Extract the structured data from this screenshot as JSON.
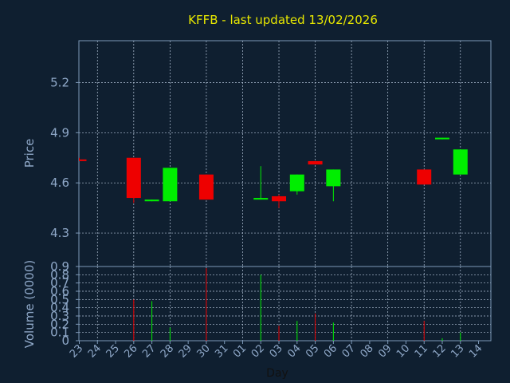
{
  "chart_data": {
    "type": "candlestick",
    "title": "KFFB - last updated 13/02/2026",
    "xlabel": "Day",
    "colors": {
      "background": "#0f1f30",
      "axis": "#7d99b8",
      "grid": "#b4c4d8",
      "title": "#e8e800",
      "up": "#00ee00",
      "down": "#ee0000",
      "tick_label": "#8fa8c8"
    },
    "x_tick_labels": [
      "23",
      "24",
      "25",
      "26",
      "27",
      "28",
      "29",
      "30",
      "31",
      "01",
      "02",
      "03",
      "04",
      "05",
      "06",
      "07",
      "08",
      "09",
      "10",
      "11",
      "12",
      "13",
      "14"
    ],
    "price_panel": {
      "ylabel": "Price",
      "ylim": [
        4.1,
        5.45
      ],
      "yticks": [
        "4.3",
        "4.6",
        "4.9",
        "5.2"
      ],
      "grid": true,
      "candles": [
        {
          "day": "23",
          "open": 4.74,
          "high": 4.75,
          "low": 4.73,
          "close": 4.74,
          "direction": "down"
        },
        {
          "day": "26",
          "open": 4.75,
          "high": 4.75,
          "low": 4.48,
          "close": 4.51,
          "direction": "down"
        },
        {
          "day": "27",
          "open": 4.49,
          "high": 4.5,
          "low": 4.49,
          "close": 4.5,
          "direction": "up"
        },
        {
          "day": "28",
          "open": 4.49,
          "high": 4.69,
          "low": 4.49,
          "close": 4.69,
          "direction": "up"
        },
        {
          "day": "30",
          "open": 4.65,
          "high": 4.65,
          "low": 4.5,
          "close": 4.5,
          "direction": "down"
        },
        {
          "day": "02",
          "open": 4.5,
          "high": 4.7,
          "low": 4.5,
          "close": 4.51,
          "direction": "up"
        },
        {
          "day": "03",
          "open": 4.52,
          "high": 4.53,
          "low": 4.45,
          "close": 4.49,
          "direction": "down"
        },
        {
          "day": "04",
          "open": 4.55,
          "high": 4.65,
          "low": 4.53,
          "close": 4.65,
          "direction": "up"
        },
        {
          "day": "05",
          "open": 4.73,
          "high": 4.73,
          "low": 4.71,
          "close": 4.71,
          "direction": "down"
        },
        {
          "day": "06",
          "open": 4.58,
          "high": 4.68,
          "low": 4.49,
          "close": 4.68,
          "direction": "up"
        },
        {
          "day": "11",
          "open": 4.68,
          "high": 4.68,
          "low": 4.59,
          "close": 4.59,
          "direction": "down"
        },
        {
          "day": "12",
          "open": 4.87,
          "high": 4.87,
          "low": 4.86,
          "close": 4.87,
          "direction": "up"
        },
        {
          "day": "13",
          "open": 4.65,
          "high": 4.8,
          "low": 4.65,
          "close": 4.8,
          "direction": "up"
        }
      ]
    },
    "volume_panel": {
      "ylabel": "Volume (0000)",
      "ylim": [
        0,
        0.9
      ],
      "yticks": [
        "0",
        "0.1",
        "0.2",
        "0.3",
        "0.4",
        "0.5",
        "0.6",
        "0.7",
        "0.8",
        "0.9"
      ],
      "grid": true,
      "bars": [
        {
          "day": "26",
          "value": 0.5,
          "direction": "down"
        },
        {
          "day": "27",
          "value": 0.48,
          "direction": "up"
        },
        {
          "day": "28",
          "value": 0.16,
          "direction": "up"
        },
        {
          "day": "30",
          "value": 0.88,
          "direction": "down"
        },
        {
          "day": "02",
          "value": 0.8,
          "direction": "up"
        },
        {
          "day": "03",
          "value": 0.18,
          "direction": "down"
        },
        {
          "day": "04",
          "value": 0.24,
          "direction": "up"
        },
        {
          "day": "05",
          "value": 0.33,
          "direction": "down"
        },
        {
          "day": "06",
          "value": 0.22,
          "direction": "up"
        },
        {
          "day": "11",
          "value": 0.24,
          "direction": "down"
        },
        {
          "day": "12",
          "value": 0.03,
          "direction": "up"
        },
        {
          "day": "13",
          "value": 0.1,
          "direction": "up"
        }
      ]
    }
  }
}
